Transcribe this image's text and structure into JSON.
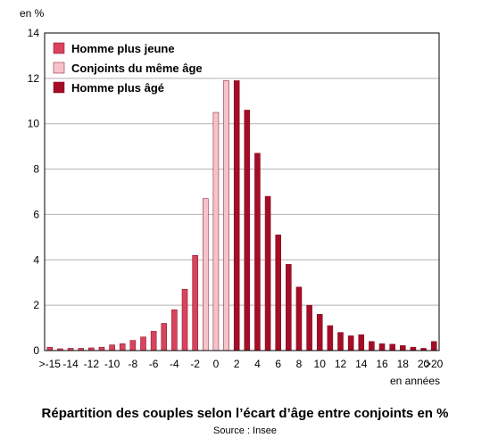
{
  "chart_data": {
    "type": "bar",
    "title": "Répartition des couples selon l’écart d’âge entre conjoints en %",
    "source": "Source : Insee",
    "ylabel": "en %",
    "xlabel": "en années",
    "ylim": [
      0,
      14
    ],
    "yticks": [
      0,
      2,
      4,
      6,
      8,
      10,
      12,
      14
    ],
    "grid": true,
    "legend_position": "top-left",
    "categories": [
      ">-15",
      "-15",
      "-14",
      "-13",
      "-12",
      "-11",
      "-10",
      "-9",
      "-8",
      "-7",
      "-6",
      "-5",
      "-4",
      "-3",
      "-2",
      "-1",
      "0",
      "1",
      "2",
      "3",
      "4",
      "5",
      "6",
      "7",
      "8",
      "9",
      "10",
      "11",
      "12",
      "13",
      "14",
      "15",
      "16",
      "17",
      "18",
      "19",
      "20",
      ">20"
    ],
    "xtick_labels": [
      ">-15",
      "-14",
      "-12",
      "-10",
      "-8",
      "-6",
      "-4",
      "-2",
      "0",
      "2",
      "4",
      "6",
      "8",
      "10",
      "12",
      "14",
      "16",
      "18",
      "20",
      ">20"
    ],
    "series": [
      {
        "name": "Homme plus jeune",
        "color": "#d9435e",
        "values": [
          0.15,
          0.08,
          0.1,
          0.1,
          0.12,
          0.15,
          0.25,
          0.3,
          0.45,
          0.6,
          0.85,
          1.2,
          1.8,
          2.7,
          4.2,
          null,
          null,
          null,
          null,
          null,
          null,
          null,
          null,
          null,
          null,
          null,
          null,
          null,
          null,
          null,
          null,
          null,
          null,
          null,
          null,
          null,
          null,
          null
        ]
      },
      {
        "name": "Conjoints du même âge",
        "color": "#f7c3cb",
        "values": [
          null,
          null,
          null,
          null,
          null,
          null,
          null,
          null,
          null,
          null,
          null,
          null,
          null,
          null,
          null,
          6.7,
          10.5,
          11.9,
          null,
          null,
          null,
          null,
          null,
          null,
          null,
          null,
          null,
          null,
          null,
          null,
          null,
          null,
          null,
          null,
          null,
          null,
          null,
          null
        ]
      },
      {
        "name": "Homme plus âgé",
        "color": "#a50d26",
        "values": [
          null,
          null,
          null,
          null,
          null,
          null,
          null,
          null,
          null,
          null,
          null,
          null,
          null,
          null,
          null,
          null,
          null,
          null,
          11.9,
          10.6,
          8.7,
          6.8,
          5.1,
          3.8,
          2.8,
          2.0,
          1.6,
          1.1,
          0.8,
          0.65,
          0.7,
          0.4,
          0.3,
          0.28,
          0.22,
          0.15,
          0.1,
          0.4
        ]
      }
    ]
  }
}
